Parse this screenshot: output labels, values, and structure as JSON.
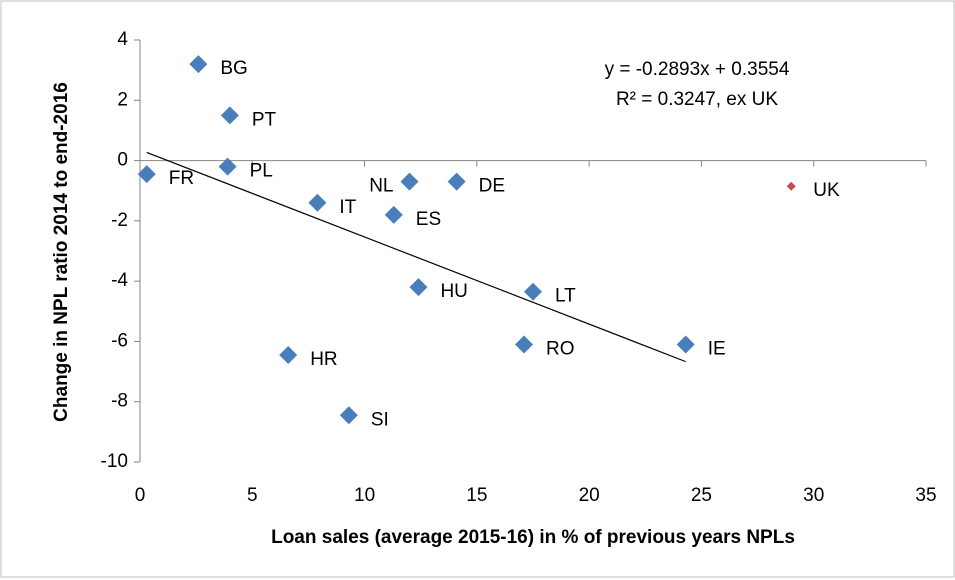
{
  "chart_data": {
    "type": "scatter",
    "xlabel": "Loan sales (average 2015-16) in % of previous years NPLs",
    "ylabel": "Change in NPL ratio 2014 to end-2016",
    "annotations": [
      "y = -0.2893x + 0.3554",
      "R² = 0.3247, ex UK"
    ],
    "xlim": [
      0,
      35
    ],
    "xticks": [
      0,
      5,
      10,
      15,
      20,
      25,
      30,
      35
    ],
    "ylim": [
      -10,
      4
    ],
    "yticks": [
      -10,
      -8,
      -6,
      -4,
      -2,
      0,
      2,
      4
    ],
    "grid": false,
    "series": [
      {
        "color": "#4a7ebb",
        "labels": [
          "FR",
          "BG",
          "PT",
          "PL",
          "IT",
          "NL",
          "DE",
          "ES",
          "HU",
          "LT",
          "RO",
          "IE",
          "HR",
          "SI"
        ],
        "x": [
          0.3,
          2.6,
          4.0,
          3.9,
          7.9,
          12.0,
          14.1,
          11.3,
          12.4,
          17.5,
          17.1,
          24.3,
          6.6,
          9.3
        ],
        "values": [
          -0.45,
          3.2,
          1.5,
          -0.2,
          -1.4,
          -0.7,
          -0.7,
          -1.8,
          -4.2,
          -4.35,
          -6.1,
          -6.1,
          -6.45,
          -8.45
        ]
      },
      {
        "color": "#c0504d",
        "labels": [
          "UK"
        ],
        "x": [
          29.0
        ],
        "values": [
          -0.85
        ]
      }
    ],
    "trendline": {
      "color": "#000000",
      "x": [
        0.3,
        24.3
      ],
      "values": [
        0.27,
        -6.67
      ]
    }
  }
}
